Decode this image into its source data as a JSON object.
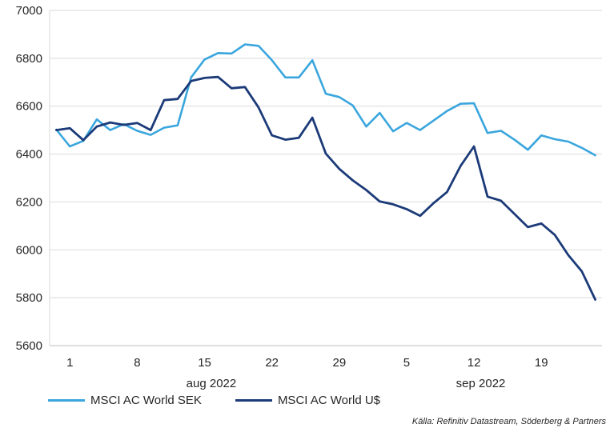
{
  "chart_data": {
    "type": "line",
    "ylim": [
      5600,
      7000
    ],
    "yticks": [
      5600,
      5800,
      6000,
      6200,
      6400,
      6600,
      6800,
      7000
    ],
    "grid": "horizontal",
    "legend_position": "bottom-left",
    "x_tick_labels": [
      "1",
      "8",
      "15",
      "22",
      "29",
      "5",
      "12",
      "19"
    ],
    "month_labels": [
      "aug 2022",
      "sep 2022"
    ],
    "x": [
      "2022-07-29",
      "2022-08-01",
      "2022-08-02",
      "2022-08-03",
      "2022-08-04",
      "2022-08-05",
      "2022-08-08",
      "2022-08-09",
      "2022-08-10",
      "2022-08-11",
      "2022-08-12",
      "2022-08-15",
      "2022-08-16",
      "2022-08-17",
      "2022-08-18",
      "2022-08-19",
      "2022-08-22",
      "2022-08-23",
      "2022-08-24",
      "2022-08-25",
      "2022-08-26",
      "2022-08-29",
      "2022-08-30",
      "2022-08-31",
      "2022-09-01",
      "2022-09-02",
      "2022-09-05",
      "2022-09-06",
      "2022-09-07",
      "2022-09-08",
      "2022-09-09",
      "2022-09-12",
      "2022-09-13",
      "2022-09-14",
      "2022-09-15",
      "2022-09-16",
      "2022-09-19",
      "2022-09-20",
      "2022-09-21",
      "2022-09-22",
      "2022-09-23"
    ],
    "series": [
      {
        "name": "MSCI AC World SEK",
        "color": "#3aa6dd",
        "values": [
          6502,
          6432,
          6455,
          6545,
          6500,
          6525,
          6497,
          6480,
          6510,
          6520,
          6720,
          6795,
          6822,
          6820,
          6858,
          6852,
          6792,
          6720,
          6720,
          6792,
          6652,
          6638,
          6603,
          6515,
          6572,
          6495,
          6530,
          6500,
          6540,
          6580,
          6610,
          6612,
          6488,
          6497,
          6460,
          6418,
          6478,
          6462,
          6452,
          6426,
          6395
        ]
      },
      {
        "name": "MSCI AC World U$",
        "color": "#1b3a78",
        "values": [
          6500,
          6508,
          6458,
          6515,
          6532,
          6522,
          6530,
          6500,
          6625,
          6630,
          6705,
          6718,
          6722,
          6675,
          6680,
          6595,
          6478,
          6460,
          6468,
          6552,
          6402,
          6338,
          6290,
          6250,
          6202,
          6190,
          6170,
          6142,
          6195,
          6242,
          6350,
          6432,
          6222,
          6205,
          6150,
          6095,
          6110,
          6062,
          5978,
          5910,
          5792
        ]
      }
    ]
  },
  "source_text": "Källa: Refinitiv Datastream, Söderberg & Partners"
}
